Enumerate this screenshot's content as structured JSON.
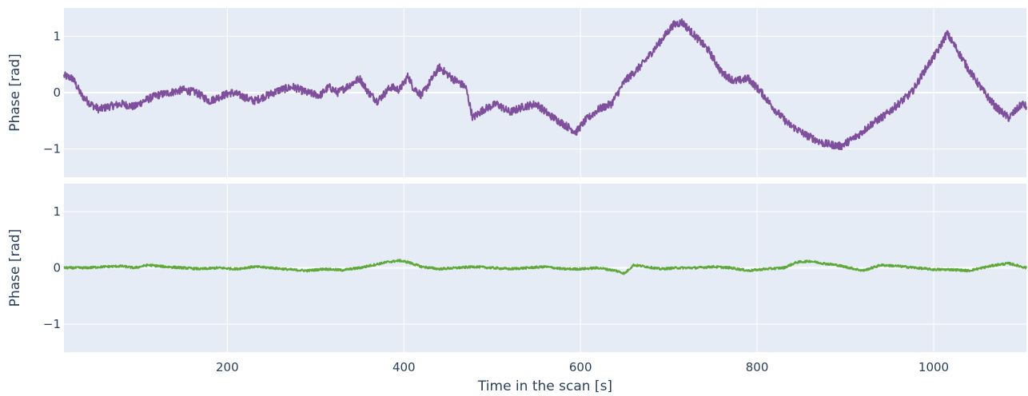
{
  "chart_data": [
    {
      "type": "line",
      "xlabel": "",
      "ylabel": "Phase [rad]",
      "xlim": [
        15,
        1105
      ],
      "ylim": [
        -1.5,
        1.5
      ],
      "x_ticks": [
        200,
        400,
        600,
        800,
        1000
      ],
      "y_ticks": [
        1,
        0,
        -1
      ],
      "y_tick_labels": [
        "1",
        "0",
        "−1"
      ],
      "grid": true,
      "legend": "none",
      "plot_bg": "#e5ecf6",
      "series": [
        {
          "color": "#7f4f9d",
          "noise": 0.07,
          "x": [
            15,
            25,
            35,
            45,
            55,
            65,
            80,
            95,
            105,
            120,
            135,
            150,
            165,
            180,
            195,
            205,
            215,
            230,
            245,
            260,
            275,
            290,
            305,
            315,
            325,
            340,
            350,
            360,
            370,
            385,
            395,
            405,
            410,
            420,
            430,
            440,
            455,
            470,
            478,
            490,
            505,
            520,
            535,
            550,
            565,
            580,
            595,
            605,
            620,
            635,
            650,
            670,
            690,
            705,
            715,
            730,
            745,
            760,
            775,
            790,
            805,
            820,
            835,
            855,
            875,
            895,
            915,
            930,
            945,
            960,
            975,
            990,
            1005,
            1015,
            1025,
            1040,
            1055,
            1070,
            1085,
            1100,
            1105
          ],
          "y": [
            0.3,
            0.25,
            -0.05,
            -0.2,
            -0.3,
            -0.25,
            -0.2,
            -0.25,
            -0.15,
            -0.05,
            0.0,
            0.05,
            0.0,
            -0.15,
            -0.05,
            0.0,
            -0.05,
            -0.15,
            -0.05,
            0.05,
            0.1,
            0.0,
            -0.05,
            0.1,
            0.0,
            0.15,
            0.25,
            0.0,
            -0.15,
            0.1,
            0.05,
            0.3,
            0.1,
            -0.05,
            0.2,
            0.45,
            0.25,
            0.1,
            -0.45,
            -0.3,
            -0.2,
            -0.35,
            -0.25,
            -0.2,
            -0.4,
            -0.55,
            -0.7,
            -0.5,
            -0.3,
            -0.2,
            0.2,
            0.5,
            0.9,
            1.2,
            1.25,
            1.0,
            0.75,
            0.35,
            0.2,
            0.25,
            0.0,
            -0.3,
            -0.55,
            -0.75,
            -0.9,
            -0.95,
            -0.75,
            -0.55,
            -0.4,
            -0.2,
            0.0,
            0.4,
            0.75,
            1.05,
            0.8,
            0.4,
            0.05,
            -0.25,
            -0.45,
            -0.2,
            -0.25
          ]
        }
      ]
    },
    {
      "type": "line",
      "xlabel": "Time in the scan [s]",
      "ylabel": "Phase [rad]",
      "xlim": [
        15,
        1105
      ],
      "ylim": [
        -1.5,
        1.5
      ],
      "x_ticks": [
        200,
        400,
        600,
        800,
        1000
      ],
      "x_tick_labels": [
        "200",
        "400",
        "600",
        "800",
        "1000"
      ],
      "y_ticks": [
        1,
        0,
        -1
      ],
      "y_tick_labels": [
        "1",
        "0",
        "−1"
      ],
      "grid": true,
      "legend": "none",
      "plot_bg": "#e5ecf6",
      "series": [
        {
          "color": "#5fa83a",
          "noise": 0.02,
          "x": [
            15,
            40,
            60,
            80,
            95,
            110,
            130,
            150,
            170,
            190,
            210,
            230,
            250,
            270,
            290,
            310,
            330,
            350,
            365,
            380,
            395,
            405,
            420,
            440,
            460,
            480,
            500,
            520,
            540,
            560,
            580,
            600,
            620,
            640,
            650,
            660,
            675,
            690,
            710,
            730,
            750,
            770,
            790,
            810,
            830,
            845,
            860,
            875,
            890,
            905,
            920,
            940,
            960,
            980,
            1000,
            1020,
            1040,
            1055,
            1070,
            1085,
            1105
          ],
          "y": [
            0.0,
            0.0,
            0.02,
            0.03,
            0.0,
            0.05,
            0.02,
            0.0,
            -0.02,
            0.0,
            -0.02,
            0.02,
            0.0,
            -0.03,
            -0.05,
            -0.02,
            -0.04,
            0.0,
            0.05,
            0.1,
            0.13,
            0.1,
            0.02,
            -0.02,
            0.0,
            0.02,
            0.0,
            -0.02,
            0.0,
            0.02,
            -0.02,
            -0.02,
            0.0,
            -0.05,
            -0.1,
            0.05,
            0.02,
            -0.02,
            0.0,
            0.0,
            0.02,
            0.0,
            -0.05,
            -0.02,
            0.0,
            0.1,
            0.12,
            0.08,
            0.05,
            0.0,
            -0.05,
            0.05,
            0.03,
            0.0,
            -0.03,
            -0.03,
            -0.05,
            0.0,
            0.05,
            0.08,
            0.0
          ]
        }
      ]
    }
  ]
}
